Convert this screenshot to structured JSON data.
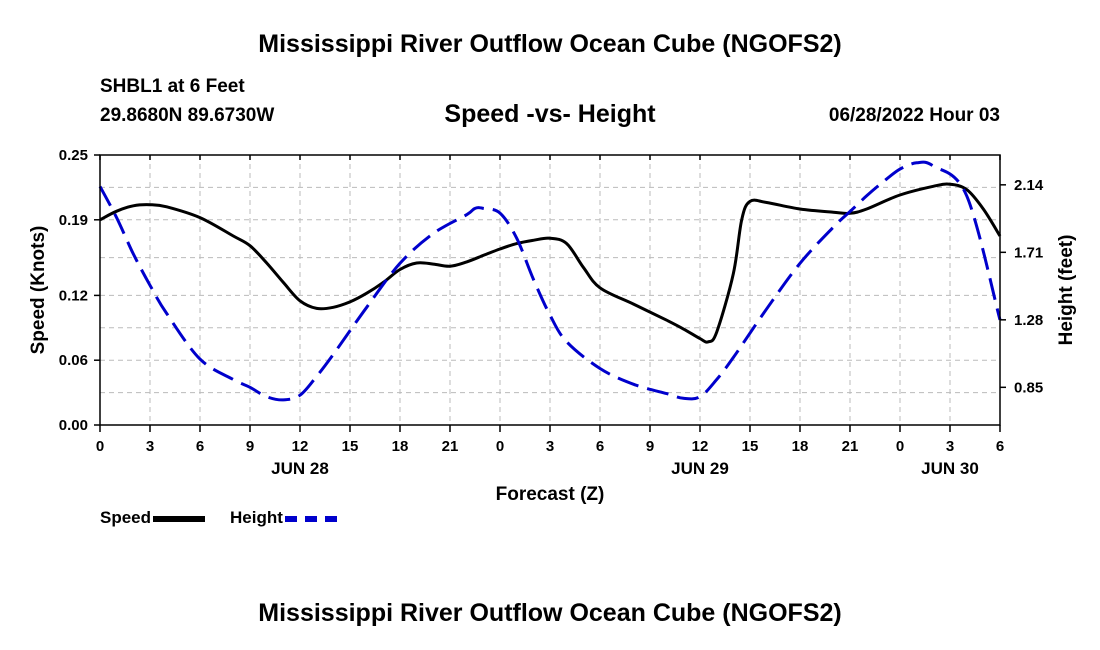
{
  "page": {
    "title": "Mississippi River Outflow Ocean Cube (NGOFS2)",
    "bottom_title": "Mississippi River Outflow Ocean Cube (NGOFS2)",
    "station": "SHBL1 at 6 Feet",
    "coords": "29.8680N  89.6730W",
    "subtitle": "Speed -vs- Height",
    "datetime": "06/28/2022 Hour 03"
  },
  "legend": {
    "speed": "Speed",
    "height": "Height"
  },
  "colors": {
    "speed": "#000000",
    "height": "#0000cc",
    "grid": "#bbbbbb"
  },
  "chart_data": {
    "type": "line",
    "xlabel": "Forecast (Z)",
    "ylabel": "Speed (Knots)",
    "y2label": "Height (feet)",
    "xlim": [
      0,
      54
    ],
    "ylim": [
      0,
      0.25
    ],
    "y2lim": [
      0.61,
      2.33
    ],
    "x_ticks": [
      0,
      3,
      6,
      9,
      12,
      15,
      18,
      21,
      24,
      27,
      30,
      33,
      36,
      39,
      42,
      45,
      48,
      51,
      54
    ],
    "x_tick_labels": [
      "0",
      "3",
      "6",
      "9",
      "12",
      "15",
      "18",
      "21",
      "0",
      "3",
      "6",
      "9",
      "12",
      "15",
      "18",
      "21",
      "0",
      "3",
      "6"
    ],
    "date_labels": [
      {
        "x": 12,
        "label": "JUN 28"
      },
      {
        "x": 36,
        "label": "JUN 29"
      },
      {
        "x": 51,
        "label": "JUN 30"
      }
    ],
    "y_ticks": [
      0.0,
      0.06,
      0.12,
      0.19,
      0.25
    ],
    "y_tick_labels": [
      "0.00",
      "0.06",
      "0.12",
      "0.19",
      "0.25"
    ],
    "y2_ticks": [
      0.85,
      1.28,
      1.71,
      2.14
    ],
    "y2_tick_labels": [
      "0.85",
      "1.28",
      "1.71",
      "2.14"
    ],
    "series": [
      {
        "name": "Speed",
        "axis": "left",
        "style": "solid",
        "x": [
          0,
          1,
          2,
          3,
          4,
          6,
          8,
          9,
          10,
          11,
          12,
          13,
          14,
          15,
          16,
          17,
          18,
          19,
          20,
          21,
          22,
          23,
          24,
          25,
          26,
          27,
          28,
          29,
          30,
          32,
          34,
          35,
          36,
          36.5,
          37,
          38,
          38.5,
          39,
          40,
          42,
          44,
          45,
          46,
          48,
          50,
          51,
          52,
          53,
          54
        ],
        "values": [
          0.19,
          0.198,
          0.203,
          0.204,
          0.202,
          0.192,
          0.175,
          0.166,
          0.15,
          0.132,
          0.115,
          0.108,
          0.109,
          0.114,
          0.122,
          0.132,
          0.144,
          0.15,
          0.149,
          0.147,
          0.151,
          0.157,
          0.163,
          0.168,
          0.171,
          0.173,
          0.168,
          0.146,
          0.127,
          0.112,
          0.097,
          0.089,
          0.08,
          0.077,
          0.086,
          0.14,
          0.19,
          0.207,
          0.206,
          0.2,
          0.197,
          0.196,
          0.2,
          0.213,
          0.221,
          0.223,
          0.218,
          0.2,
          0.175
        ]
      },
      {
        "name": "Height",
        "axis": "right",
        "style": "dashed",
        "x": [
          0,
          1,
          2,
          3,
          4,
          6,
          8,
          9,
          10,
          11,
          12,
          13,
          14,
          16,
          18,
          20,
          22,
          22.5,
          23,
          24,
          25,
          26,
          27,
          28,
          30,
          32,
          34,
          35,
          36,
          37,
          38,
          40,
          42,
          44,
          45,
          46,
          47,
          48,
          49,
          50,
          52,
          54
        ],
        "values": [
          2.13,
          1.93,
          1.7,
          1.5,
          1.32,
          1.03,
          0.9,
          0.85,
          0.79,
          0.77,
          0.8,
          0.92,
          1.06,
          1.36,
          1.64,
          1.83,
          1.95,
          1.99,
          1.99,
          1.96,
          1.8,
          1.54,
          1.31,
          1.14,
          0.97,
          0.87,
          0.81,
          0.78,
          0.79,
          0.9,
          1.04,
          1.35,
          1.64,
          1.87,
          1.97,
          2.07,
          2.16,
          2.24,
          2.28,
          2.26,
          2.07,
          1.28
        ]
      }
    ]
  }
}
